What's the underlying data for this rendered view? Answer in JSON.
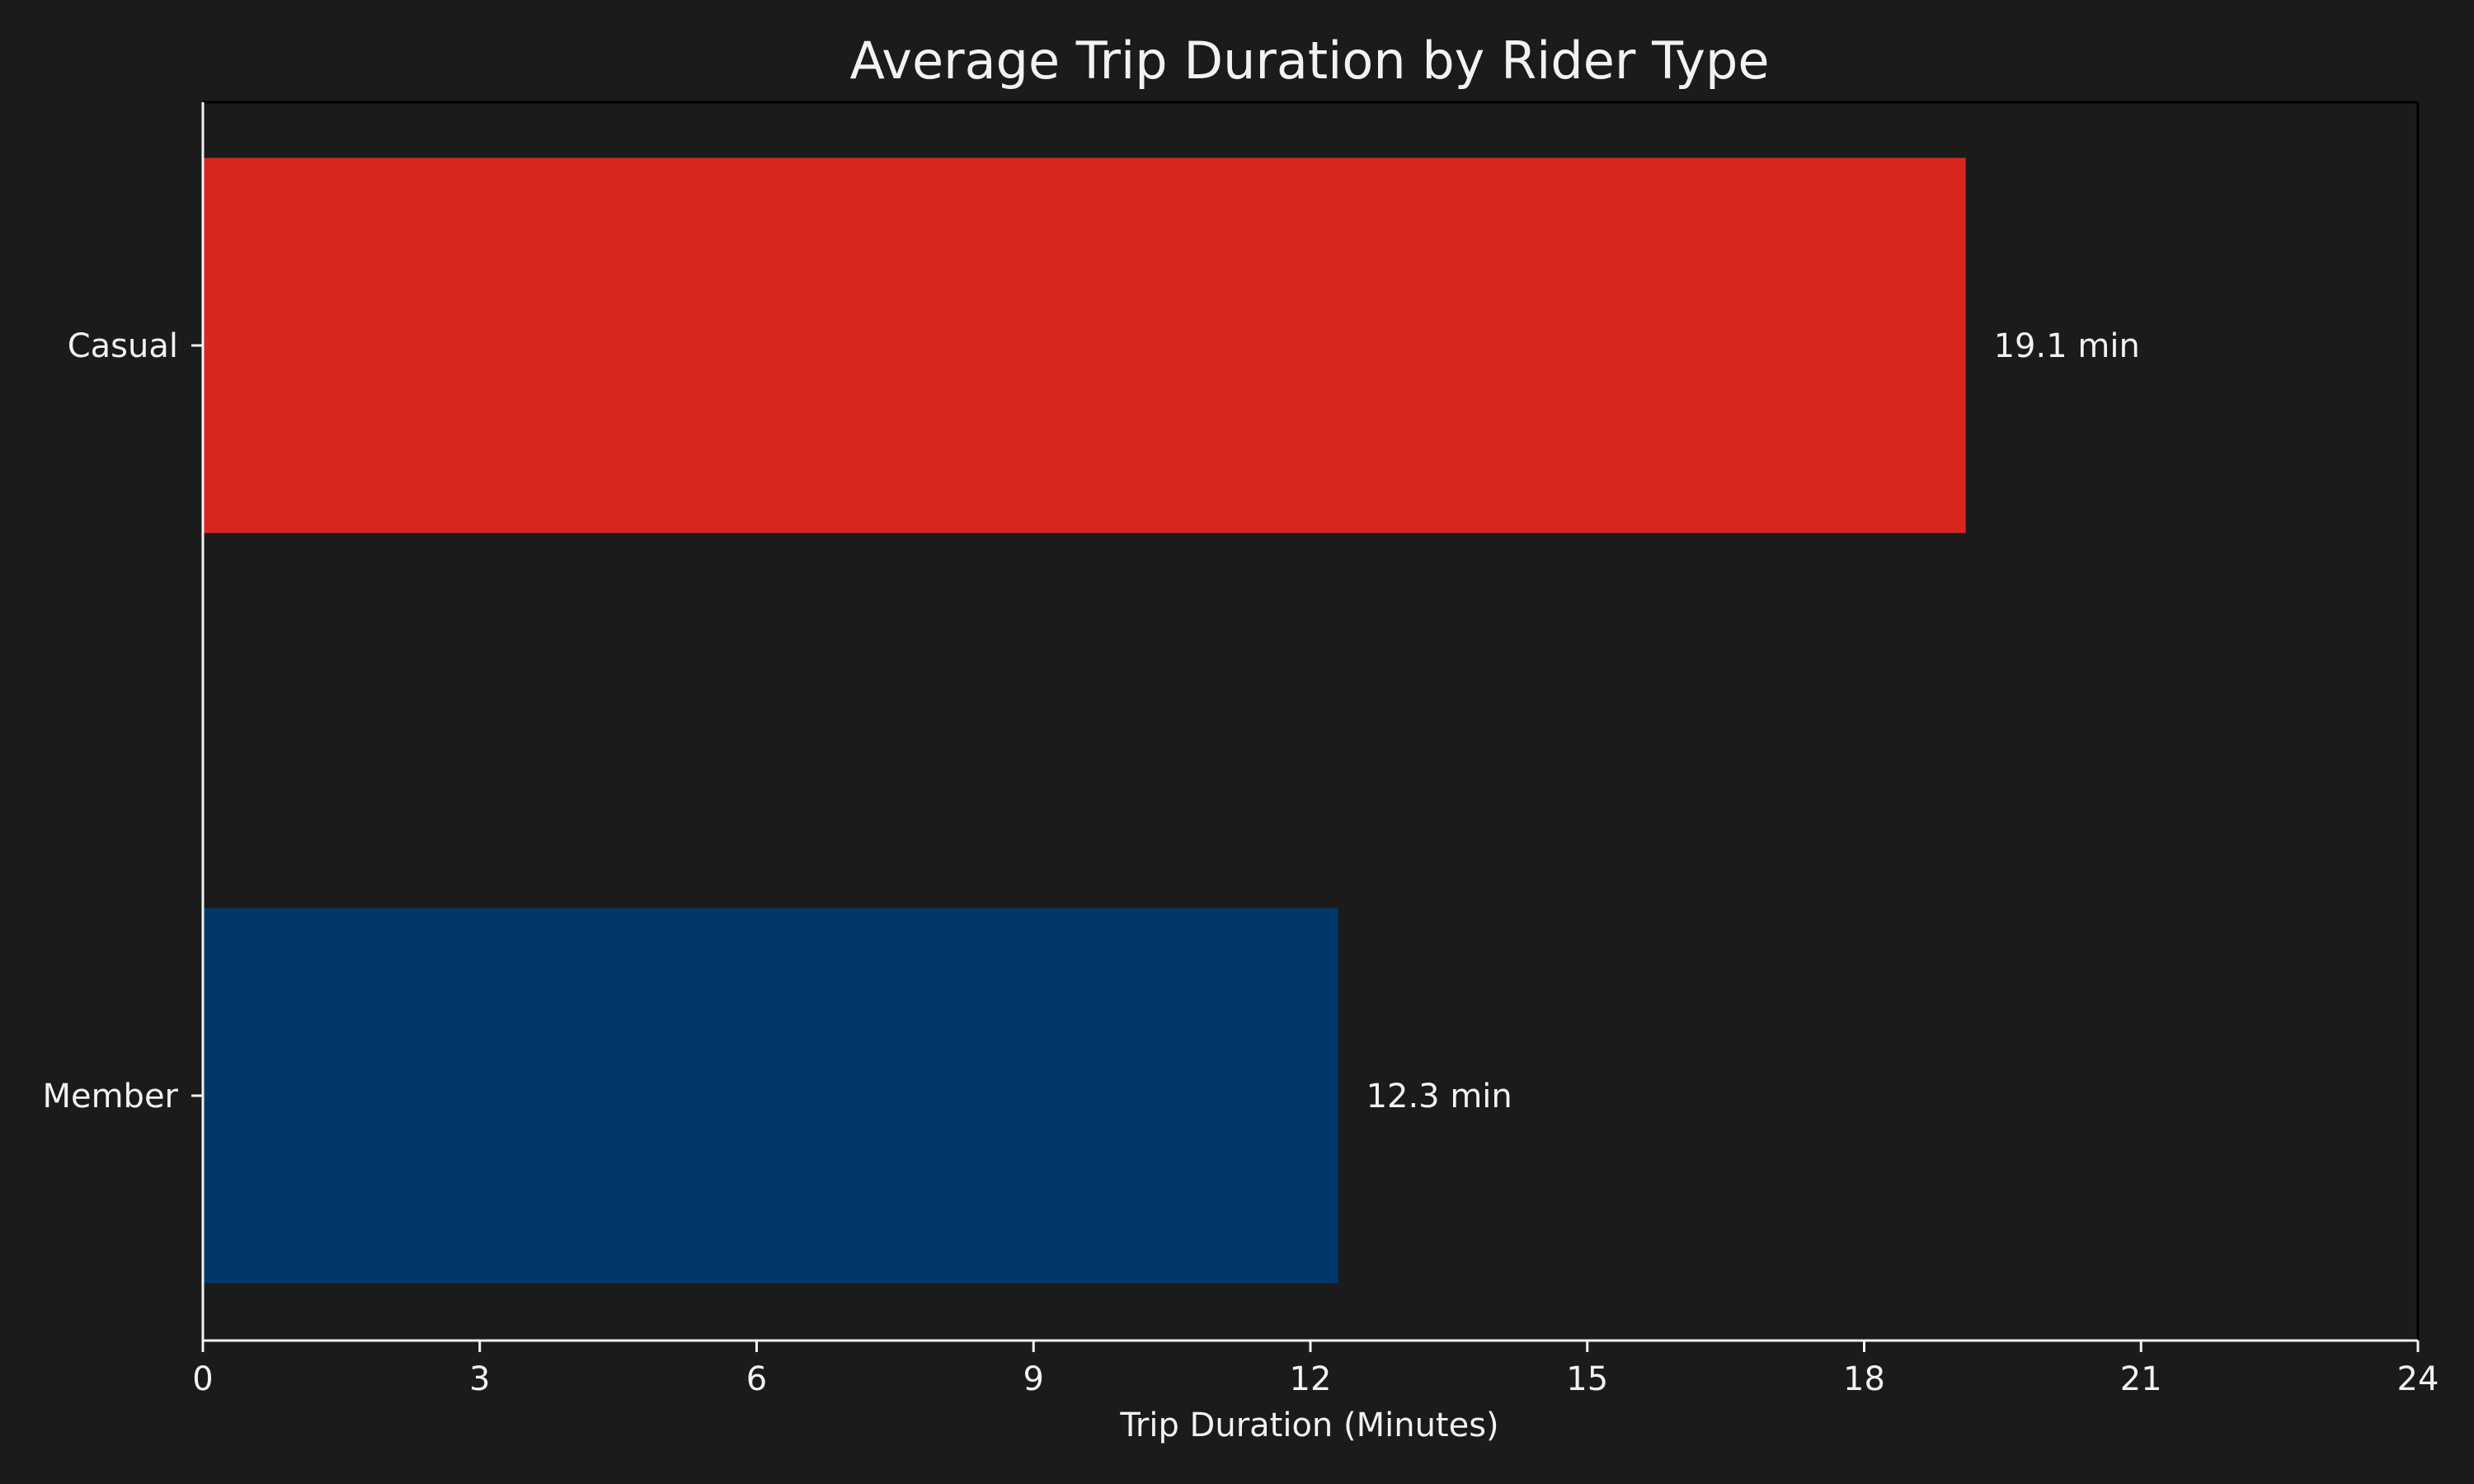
{
  "chart_data": {
    "type": "bar",
    "orientation": "horizontal",
    "title": "Average Trip Duration by Rider Type",
    "xlabel": "Trip Duration (Minutes)",
    "ylabel": "",
    "categories": [
      "Casual",
      "Member"
    ],
    "values": [
      19.1,
      12.3
    ],
    "value_labels": [
      "19.1 min",
      "12.3 min"
    ],
    "bar_colors": [
      "#d9261e",
      "#00386b"
    ],
    "xlim": [
      0,
      24
    ],
    "xticks": [
      0,
      3,
      6,
      9,
      12,
      15,
      18,
      21,
      24
    ],
    "xtick_labels": [
      "0",
      "3",
      "6",
      "9",
      "12",
      "15",
      "18",
      "21",
      "24"
    ],
    "grid": false,
    "legend": "none",
    "background_color": "#1b1b1b",
    "text_color": "#f2f2f2",
    "axis_color": "#f2f2f2"
  }
}
